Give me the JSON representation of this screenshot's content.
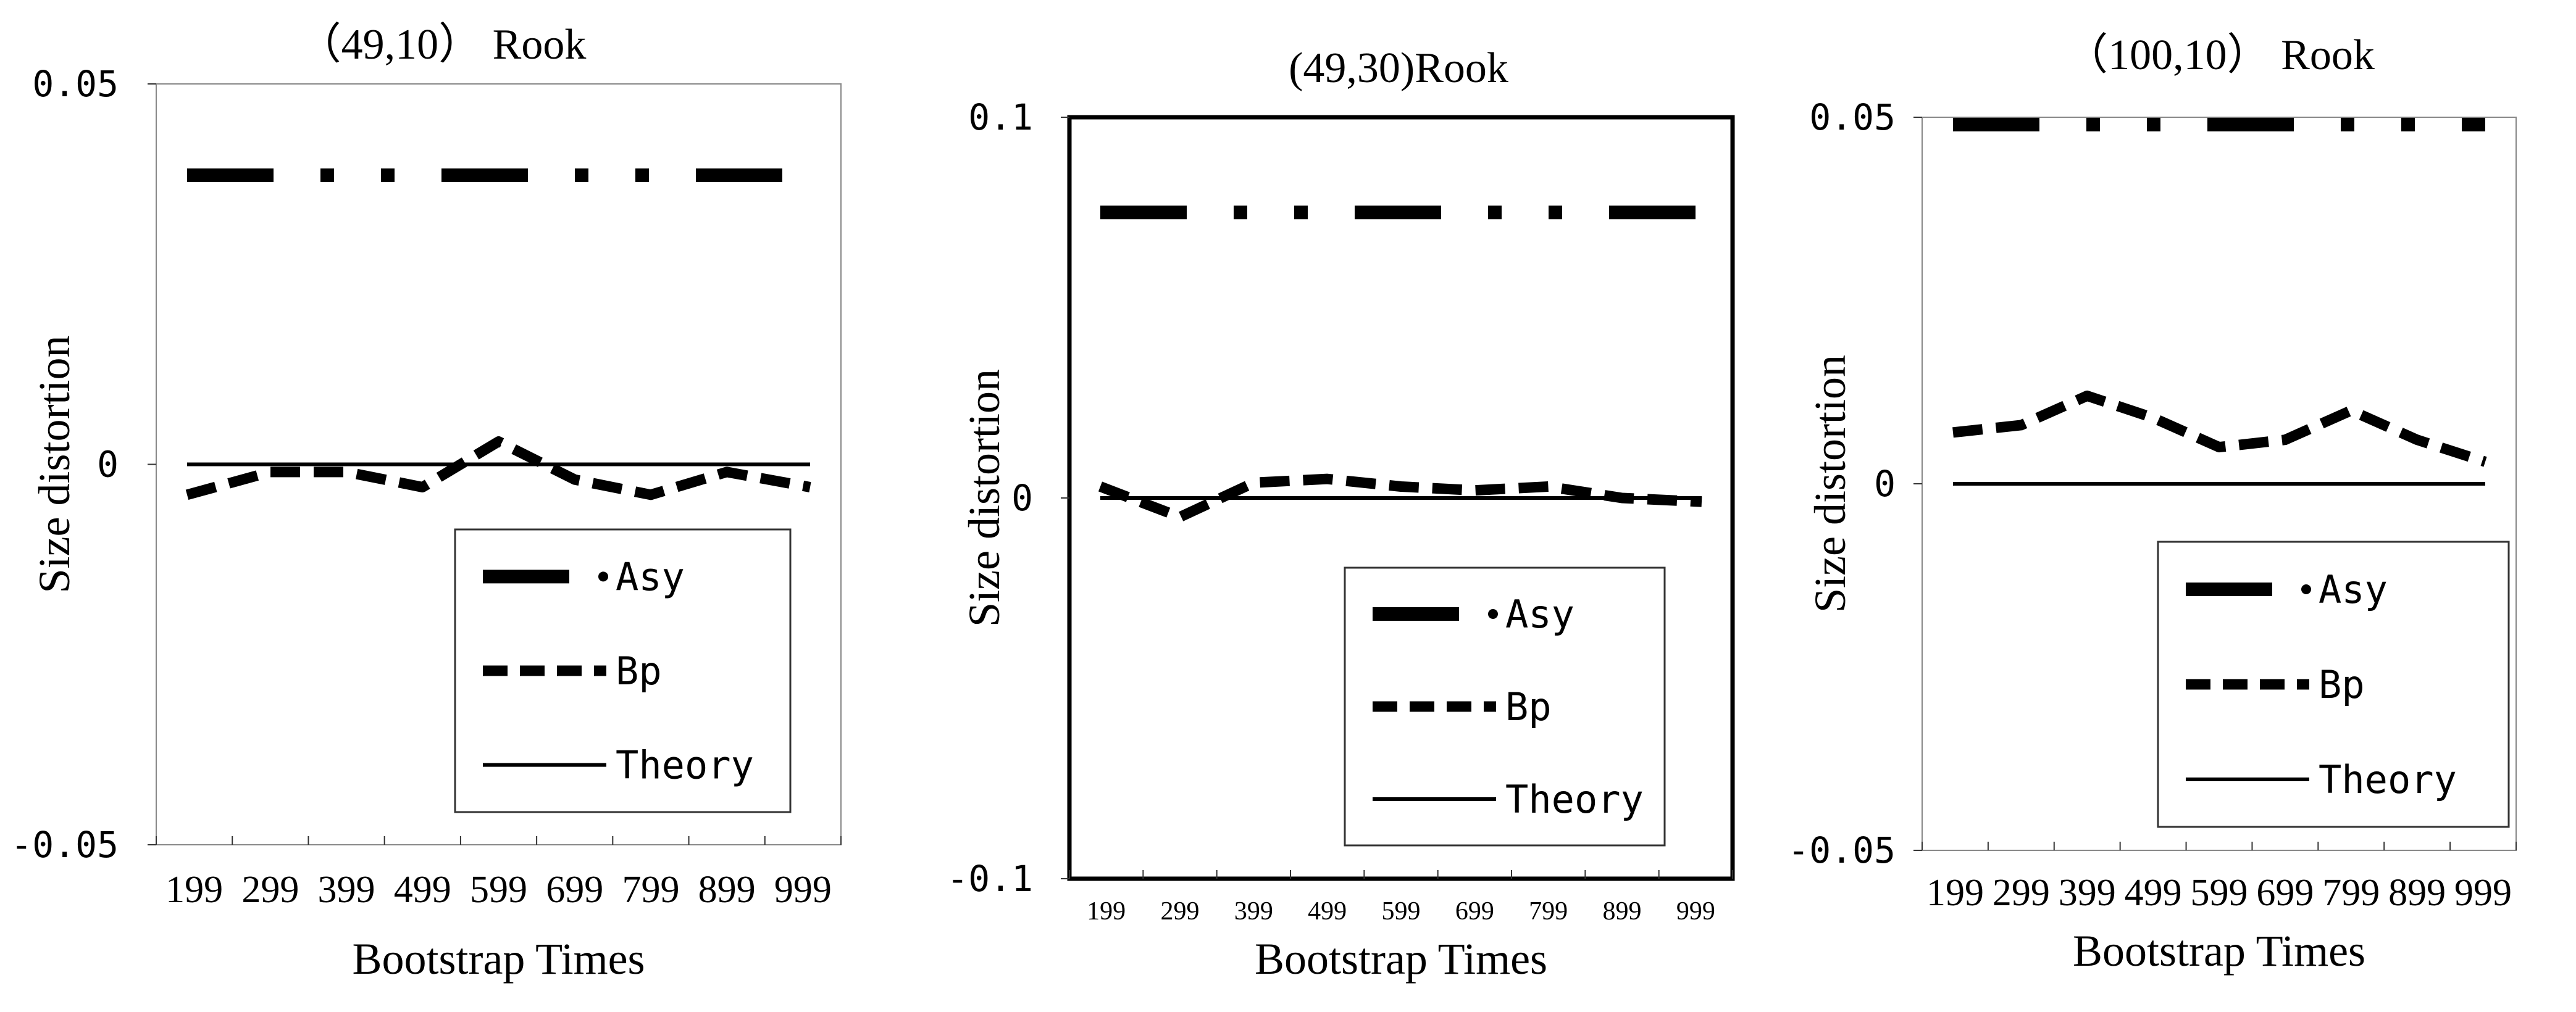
{
  "chart_data": [
    {
      "type": "line",
      "title": "（49,10） Rook",
      "xlabel": "Bootstrap Times",
      "ylabel": "Size distortion",
      "categories": [
        "199",
        "299",
        "399",
        "499",
        "599",
        "699",
        "799",
        "899",
        "999"
      ],
      "ylim": [
        -0.05,
        0.05
      ],
      "yticks": [
        "0.05",
        "0",
        "-0.05"
      ],
      "legend_position": "bottom-right",
      "series": [
        {
          "name": "Asy",
          "style": "dash-dot-dot",
          "values": [
            0.038,
            0.038,
            0.038,
            0.038,
            0.038,
            0.038,
            0.038,
            0.038,
            0.038
          ]
        },
        {
          "name": "Bp",
          "style": "dashed",
          "values": [
            -0.004,
            -0.001,
            -0.001,
            -0.003,
            0.003,
            -0.002,
            -0.004,
            -0.001,
            -0.003
          ]
        },
        {
          "name": "Theory",
          "style": "solid",
          "values": [
            0,
            0,
            0,
            0,
            0,
            0,
            0,
            0,
            0
          ]
        }
      ]
    },
    {
      "type": "line",
      "title": "(49,30)Rook",
      "xlabel": "Bootstrap Times",
      "ylabel": "Size distortion",
      "categories": [
        "199",
        "299",
        "399",
        "499",
        "599",
        "699",
        "799",
        "899",
        "999"
      ],
      "ylim": [
        -0.1,
        0.1
      ],
      "yticks": [
        "0.1",
        "0",
        "-0.1"
      ],
      "legend_position": "bottom-right",
      "series": [
        {
          "name": "Asy",
          "style": "dash-dot-dot",
          "values": [
            0.075,
            0.075,
            0.075,
            0.075,
            0.075,
            0.075,
            0.075,
            0.075,
            0.075
          ]
        },
        {
          "name": "Bp",
          "style": "dashed",
          "values": [
            0.003,
            -0.005,
            0.004,
            0.005,
            0.003,
            0.002,
            0.003,
            0.0,
            -0.001
          ]
        },
        {
          "name": "Theory",
          "style": "solid",
          "values": [
            0,
            0,
            0,
            0,
            0,
            0,
            0,
            0,
            0
          ]
        }
      ]
    },
    {
      "type": "line",
      "title": "（100,10） Rook",
      "xlabel": "Bootstrap Times",
      "ylabel": "Size distortion",
      "categories": [
        "199",
        "299",
        "399",
        "499",
        "599",
        "699",
        "799",
        "899",
        "999"
      ],
      "ylim": [
        -0.05,
        0.05
      ],
      "yticks": [
        "0.05",
        "0",
        "-0.05"
      ],
      "legend_position": "bottom-right",
      "series": [
        {
          "name": "Asy",
          "style": "dash-dot-dot",
          "values": [
            0.049,
            0.049,
            0.049,
            0.049,
            0.049,
            0.049,
            0.049,
            0.049,
            0.049
          ]
        },
        {
          "name": "Bp",
          "style": "dashed",
          "values": [
            0.007,
            0.008,
            0.012,
            0.009,
            0.005,
            0.006,
            0.01,
            0.006,
            0.003
          ]
        },
        {
          "name": "Theory",
          "style": "solid",
          "values": [
            0,
            0,
            0,
            0,
            0,
            0,
            0,
            0,
            0
          ]
        }
      ]
    }
  ]
}
